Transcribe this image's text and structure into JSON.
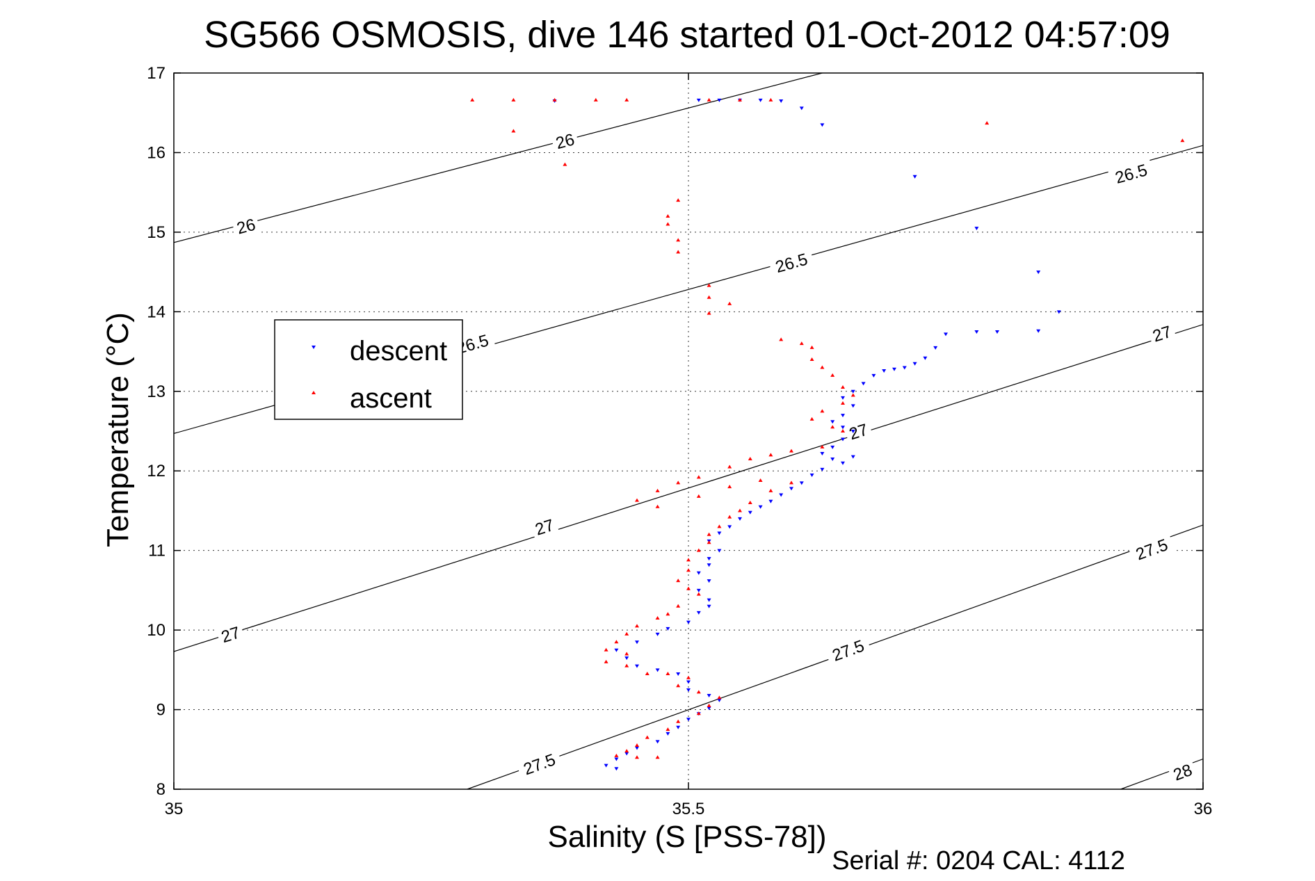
{
  "chart_data": {
    "type": "scatter",
    "title": "SG566 OSMOSIS, dive 146 started 01-Oct-2012 04:57:09",
    "xlabel": "Salinity (S [PSS-78])",
    "ylabel": "Temperature (°C)",
    "footer": "Serial #: 0204  CAL: 4112",
    "xlim": [
      35,
      36
    ],
    "ylim": [
      8,
      17
    ],
    "x_ticks": [
      35,
      35.5,
      36
    ],
    "x_tick_labels": [
      "35",
      "35.5",
      "36"
    ],
    "y_ticks": [
      8,
      9,
      10,
      11,
      12,
      13,
      14,
      15,
      16,
      17
    ],
    "y_tick_labels": [
      "8",
      "9",
      "10",
      "11",
      "12",
      "13",
      "14",
      "15",
      "16",
      "17"
    ],
    "grid": true,
    "legend_position": "upper-left",
    "series": [
      {
        "name": "descent",
        "marker": "triangle-down",
        "color": "#0000ff",
        "points": [
          [
            35.37,
            16.65
          ],
          [
            35.51,
            16.66
          ],
          [
            35.53,
            16.66
          ],
          [
            35.55,
            16.66
          ],
          [
            35.57,
            16.66
          ],
          [
            35.59,
            16.65
          ],
          [
            35.61,
            16.56
          ],
          [
            35.63,
            16.35
          ],
          [
            35.72,
            15.7
          ],
          [
            35.78,
            15.05
          ],
          [
            35.84,
            14.5
          ],
          [
            35.86,
            14.0
          ],
          [
            35.84,
            13.76
          ],
          [
            35.8,
            13.75
          ],
          [
            35.78,
            13.75
          ],
          [
            35.75,
            13.72
          ],
          [
            35.74,
            13.55
          ],
          [
            35.73,
            13.42
          ],
          [
            35.72,
            13.35
          ],
          [
            35.71,
            13.3
          ],
          [
            35.7,
            13.28
          ],
          [
            35.69,
            13.26
          ],
          [
            35.68,
            13.2
          ],
          [
            35.67,
            13.1
          ],
          [
            35.66,
            13.0
          ],
          [
            35.65,
            12.92
          ],
          [
            35.66,
            12.82
          ],
          [
            35.65,
            12.7
          ],
          [
            35.64,
            12.62
          ],
          [
            35.65,
            12.55
          ],
          [
            35.66,
            12.5
          ],
          [
            35.65,
            12.4
          ],
          [
            35.64,
            12.3
          ],
          [
            35.63,
            12.22
          ],
          [
            35.64,
            12.15
          ],
          [
            35.66,
            12.18
          ],
          [
            35.65,
            12.1
          ],
          [
            35.63,
            12.02
          ],
          [
            35.62,
            11.95
          ],
          [
            35.61,
            11.85
          ],
          [
            35.6,
            11.78
          ],
          [
            35.59,
            11.7
          ],
          [
            35.58,
            11.62
          ],
          [
            35.57,
            11.55
          ],
          [
            35.56,
            11.48
          ],
          [
            35.55,
            11.4
          ],
          [
            35.54,
            11.3
          ],
          [
            35.53,
            11.22
          ],
          [
            35.52,
            11.12
          ],
          [
            35.53,
            11.0
          ],
          [
            35.52,
            10.9
          ],
          [
            35.52,
            10.82
          ],
          [
            35.51,
            10.72
          ],
          [
            35.52,
            10.62
          ],
          [
            35.51,
            10.5
          ],
          [
            35.52,
            10.38
          ],
          [
            35.52,
            10.3
          ],
          [
            35.51,
            10.22
          ],
          [
            35.5,
            10.1
          ],
          [
            35.48,
            10.02
          ],
          [
            35.47,
            9.95
          ],
          [
            35.45,
            9.85
          ],
          [
            35.43,
            9.75
          ],
          [
            35.44,
            9.65
          ],
          [
            35.45,
            9.55
          ],
          [
            35.47,
            9.5
          ],
          [
            35.49,
            9.45
          ],
          [
            35.5,
            9.35
          ],
          [
            35.5,
            9.25
          ],
          [
            35.52,
            9.18
          ],
          [
            35.53,
            9.12
          ],
          [
            35.52,
            9.02
          ],
          [
            35.51,
            8.95
          ],
          [
            35.5,
            8.88
          ],
          [
            35.49,
            8.78
          ],
          [
            35.48,
            8.7
          ],
          [
            35.47,
            8.6
          ],
          [
            35.45,
            8.52
          ],
          [
            35.44,
            8.45
          ],
          [
            35.43,
            8.38
          ],
          [
            35.42,
            8.3
          ],
          [
            35.43,
            8.26
          ]
        ]
      },
      {
        "name": "ascent",
        "marker": "triangle-up",
        "color": "#ff0000",
        "points": [
          [
            35.29,
            16.66
          ],
          [
            35.33,
            16.66
          ],
          [
            35.37,
            16.66
          ],
          [
            35.41,
            16.66
          ],
          [
            35.44,
            16.66
          ],
          [
            35.52,
            16.66
          ],
          [
            35.55,
            16.66
          ],
          [
            35.58,
            16.66
          ],
          [
            35.33,
            16.27
          ],
          [
            35.38,
            15.85
          ],
          [
            35.79,
            16.37
          ],
          [
            35.98,
            16.15
          ],
          [
            35.49,
            15.4
          ],
          [
            35.48,
            15.2
          ],
          [
            35.48,
            15.1
          ],
          [
            35.49,
            14.9
          ],
          [
            35.49,
            14.75
          ],
          [
            35.52,
            14.33
          ],
          [
            35.52,
            14.18
          ],
          [
            35.54,
            14.1
          ],
          [
            35.52,
            13.98
          ],
          [
            35.59,
            13.65
          ],
          [
            35.61,
            13.6
          ],
          [
            35.62,
            13.55
          ],
          [
            35.62,
            13.4
          ],
          [
            35.63,
            13.3
          ],
          [
            35.64,
            13.2
          ],
          [
            35.65,
            13.05
          ],
          [
            35.66,
            12.95
          ],
          [
            35.65,
            12.85
          ],
          [
            35.63,
            12.75
          ],
          [
            35.62,
            12.65
          ],
          [
            35.64,
            12.55
          ],
          [
            35.65,
            12.5
          ],
          [
            35.63,
            12.3
          ],
          [
            35.6,
            12.25
          ],
          [
            35.58,
            12.2
          ],
          [
            35.56,
            12.15
          ],
          [
            35.54,
            12.05
          ],
          [
            35.51,
            11.92
          ],
          [
            35.49,
            11.85
          ],
          [
            35.47,
            11.75
          ],
          [
            35.45,
            11.63
          ],
          [
            35.47,
            11.55
          ],
          [
            35.51,
            11.68
          ],
          [
            35.54,
            11.8
          ],
          [
            35.57,
            11.88
          ],
          [
            35.6,
            11.85
          ],
          [
            35.58,
            11.75
          ],
          [
            35.56,
            11.6
          ],
          [
            35.55,
            11.5
          ],
          [
            35.54,
            11.42
          ],
          [
            35.53,
            11.3
          ],
          [
            35.52,
            11.2
          ],
          [
            35.52,
            11.1
          ],
          [
            35.51,
            11.0
          ],
          [
            35.5,
            10.88
          ],
          [
            35.5,
            10.75
          ],
          [
            35.49,
            10.62
          ],
          [
            35.5,
            10.52
          ],
          [
            35.51,
            10.45
          ],
          [
            35.49,
            10.3
          ],
          [
            35.48,
            10.2
          ],
          [
            35.47,
            10.15
          ],
          [
            35.45,
            10.05
          ],
          [
            35.44,
            9.95
          ],
          [
            35.43,
            9.85
          ],
          [
            35.42,
            9.75
          ],
          [
            35.44,
            9.7
          ],
          [
            35.42,
            9.6
          ],
          [
            35.44,
            9.55
          ],
          [
            35.46,
            9.45
          ],
          [
            35.48,
            9.45
          ],
          [
            35.5,
            9.4
          ],
          [
            35.49,
            9.3
          ],
          [
            35.51,
            9.22
          ],
          [
            35.53,
            9.15
          ],
          [
            35.52,
            9.05
          ],
          [
            35.51,
            8.95
          ],
          [
            35.49,
            8.85
          ],
          [
            35.48,
            8.75
          ],
          [
            35.46,
            8.65
          ],
          [
            35.45,
            8.55
          ],
          [
            35.44,
            8.48
          ],
          [
            35.43,
            8.42
          ],
          [
            35.45,
            8.4
          ],
          [
            35.47,
            8.4
          ]
        ]
      }
    ],
    "density_contours": [
      {
        "label": "26",
        "points": [
          [
            35.0,
            14.87
          ],
          [
            35.63,
            17.0
          ]
        ],
        "label_positions": [
          [
            35.07,
            15.08
          ],
          [
            35.38,
            16.15
          ]
        ]
      },
      {
        "label": "26.5",
        "points": [
          [
            35.0,
            12.47
          ],
          [
            36.0,
            16.09
          ]
        ],
        "label_positions": [
          [
            35.29,
            13.6
          ],
          [
            35.6,
            14.62
          ],
          [
            35.93,
            15.74
          ]
        ]
      },
      {
        "label": "27",
        "points": [
          [
            35.0,
            9.73
          ],
          [
            36.0,
            13.84
          ]
        ],
        "label_positions": [
          [
            35.055,
            9.95
          ],
          [
            35.36,
            11.3
          ],
          [
            35.665,
            12.5
          ],
          [
            35.96,
            13.73
          ]
        ]
      },
      {
        "label": "27.5",
        "points": [
          [
            35.285,
            8.0
          ],
          [
            36.0,
            11.32
          ]
        ],
        "label_positions": [
          [
            35.355,
            8.32
          ],
          [
            35.655,
            9.75
          ],
          [
            35.95,
            11.02
          ]
        ]
      },
      {
        "label": "28",
        "points": [
          [
            35.92,
            8.0
          ],
          [
            36.0,
            8.38
          ]
        ],
        "label_positions": [
          [
            35.98,
            8.22
          ]
        ]
      }
    ]
  }
}
